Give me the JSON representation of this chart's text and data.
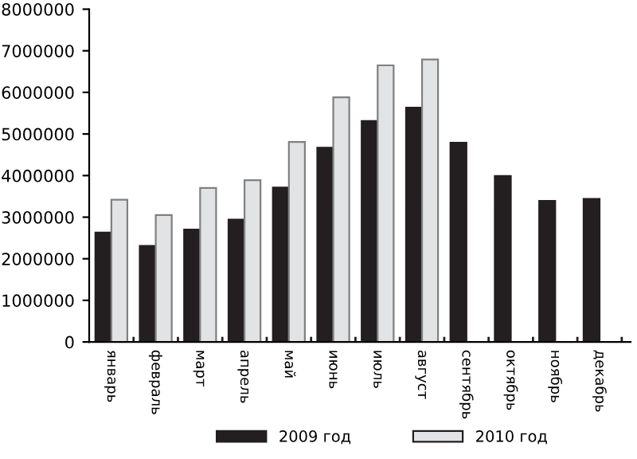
{
  "chart_data": {
    "type": "bar",
    "categories": [
      "январь",
      "февраль",
      "март",
      "апрель",
      "май",
      "июнь",
      "июль",
      "август",
      "сентябрь",
      "октябрь",
      "ноябрь",
      "декабрь"
    ],
    "series": [
      {
        "name": "2009 год",
        "color": "#231f20",
        "values": [
          2630000,
          2310000,
          2700000,
          2940000,
          3710000,
          4670000,
          5310000,
          5630000,
          4790000,
          3990000,
          3390000,
          3440000
        ]
      },
      {
        "name": "2010 год",
        "color": "#e2e3e4",
        "values": [
          3420000,
          3050000,
          3700000,
          3890000,
          4810000,
          5880000,
          6650000,
          6790000,
          null,
          null,
          null,
          null
        ]
      }
    ],
    "ylim": [
      0,
      8000000
    ],
    "yticks": [
      0,
      1000000,
      2000000,
      3000000,
      4000000,
      5000000,
      6000000,
      7000000,
      8000000
    ],
    "grid": false,
    "legend": "bottom"
  }
}
